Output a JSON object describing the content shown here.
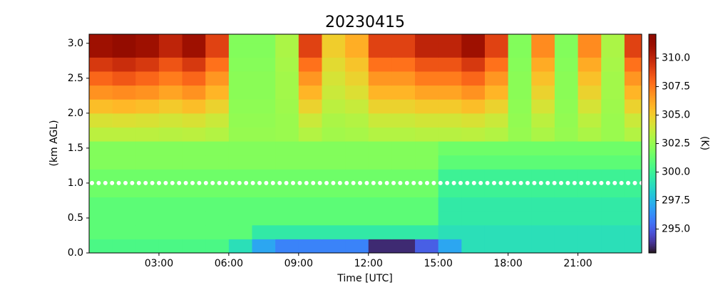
{
  "chart_data": {
    "type": "heatmap",
    "title": "20230415",
    "x_label": "Time [UTC]",
    "y_label": "(km AGL)",
    "colorbar_label": "(K)",
    "colormap": "turbo",
    "xlim": [
      0,
      23.74
    ],
    "ylim": [
      0,
      3.13
    ],
    "clim": [
      292.9,
      312.1
    ],
    "xticks": [
      {
        "value": 3,
        "label": "03:00"
      },
      {
        "value": 6,
        "label": "06:00"
      },
      {
        "value": 9,
        "label": "09:00"
      },
      {
        "value": 12,
        "label": "12:00"
      },
      {
        "value": 15,
        "label": "15:00"
      },
      {
        "value": 18,
        "label": "18:00"
      },
      {
        "value": 21,
        "label": "21:00"
      }
    ],
    "yticks": [
      {
        "value": 0,
        "label": "0.0"
      },
      0.5,
      {
        "value": 1,
        "label": "1.0"
      },
      1.5,
      {
        "value": 2,
        "label": "2.0"
      },
      2.5,
      {
        "value": 3,
        "label": "3.0"
      }
    ],
    "cticks": [
      {
        "value": 295,
        "label": "295.0"
      },
      297.5,
      {
        "value": 300,
        "label": "300.0"
      },
      302.5,
      {
        "value": 305,
        "label": "305.0"
      },
      307.5,
      {
        "value": 310,
        "label": "310.0"
      }
    ],
    "hline": 1.0,
    "x_edges": [
      0,
      1,
      2,
      3,
      4,
      5,
      6,
      7,
      8,
      9,
      10,
      11,
      12,
      13,
      14,
      15,
      16,
      17,
      18,
      19,
      20,
      21,
      22,
      23,
      23.74
    ],
    "y_edges": [
      0,
      0.2,
      0.4,
      0.6,
      0.8,
      1.0,
      1.2,
      1.4,
      1.6,
      1.8,
      2.0,
      2.2,
      2.4,
      2.6,
      2.8,
      3.0,
      3.2
    ],
    "values": [
      [
        300.5,
        300.5,
        300.5,
        300.5,
        300.5,
        300.5,
        299,
        297,
        296,
        296,
        296,
        296,
        293.5,
        293.5,
        295,
        297,
        299,
        299,
        299,
        299,
        299,
        299,
        299,
        299
      ],
      [
        301,
        301,
        301,
        301,
        301,
        301,
        301,
        299.5,
        299.5,
        299.5,
        299.5,
        299.5,
        299.5,
        299.5,
        299.5,
        299,
        299,
        299,
        299,
        299,
        299,
        299,
        299,
        299
      ],
      [
        301,
        301,
        301,
        301,
        301,
        301,
        301,
        301,
        301,
        301,
        301,
        301,
        301,
        301,
        301,
        299.5,
        299.5,
        299.5,
        299.5,
        299.5,
        299.5,
        299.5,
        299.5,
        299.5
      ],
      [
        301,
        301,
        301,
        301,
        301,
        301,
        301,
        301,
        301,
        301,
        301,
        301,
        301,
        301,
        301,
        299.5,
        299.5,
        299.5,
        299.5,
        299.5,
        299.5,
        299.5,
        299.5,
        299.5
      ],
      [
        301.5,
        301.5,
        301.5,
        301.5,
        301.5,
        301.5,
        301.5,
        301.5,
        301.5,
        301.5,
        301.5,
        301.5,
        301.5,
        301.5,
        301.5,
        300,
        300,
        300,
        300,
        300,
        300,
        300,
        300,
        300
      ],
      [
        301.5,
        301.5,
        301.5,
        301.5,
        301.5,
        301.5,
        301.5,
        301.5,
        301.5,
        301.5,
        301.5,
        301.5,
        301.5,
        301.5,
        301.5,
        300,
        300,
        300,
        300,
        300,
        300,
        300,
        300,
        300
      ],
      [
        302,
        302,
        302,
        302,
        302,
        302,
        302,
        302,
        302,
        302,
        302,
        302,
        302,
        302,
        302,
        301,
        301,
        301,
        301,
        301,
        301,
        301,
        301,
        301
      ],
      [
        302,
        302,
        302,
        302,
        302,
        302,
        302,
        302,
        302,
        302,
        302,
        302,
        302,
        302,
        302,
        301.5,
        301.5,
        301.5,
        301.5,
        301.5,
        301.5,
        301.5,
        301.5,
        301.5
      ],
      [
        303.4,
        303.4,
        303.4,
        303.3,
        303.4,
        303.2,
        302.5,
        302.5,
        302.6,
        303.2,
        302.8,
        302.9,
        303.2,
        303.2,
        303.3,
        303.3,
        303.4,
        303.2,
        302.5,
        303,
        302.5,
        303,
        302.6,
        303.2
      ],
      [
        304.2,
        304.3,
        304.2,
        304,
        304.2,
        303.8,
        302.4,
        302.4,
        302.6,
        303.8,
        303,
        303.2,
        303.8,
        303.8,
        304,
        304,
        304.2,
        303.8,
        302.4,
        303.4,
        302.4,
        303.4,
        302.6,
        303.8
      ],
      [
        305.5,
        305.7,
        305.5,
        305.1,
        305.5,
        304.8,
        302.3,
        302.3,
        302.7,
        304.8,
        303.4,
        303.7,
        304.8,
        304.8,
        305.1,
        305.1,
        305.5,
        304.8,
        302.3,
        304.1,
        302.3,
        304.1,
        302.7,
        304.8
      ],
      [
        306.8,
        307,
        306.8,
        306.3,
        306.8,
        305.8,
        302.2,
        302.2,
        302.8,
        305.8,
        303.8,
        304.3,
        305.8,
        305.8,
        306.3,
        306.3,
        306.8,
        305.8,
        302.2,
        304.8,
        302.2,
        304.8,
        302.8,
        305.8
      ],
      [
        308,
        308.4,
        308,
        307.4,
        308,
        306.7,
        302.2,
        302.2,
        302.8,
        306.7,
        304.1,
        304.8,
        306.7,
        306.7,
        307.4,
        307.4,
        308,
        306.7,
        302.2,
        305.4,
        302.2,
        305.4,
        302.8,
        306.7
      ],
      [
        309.3,
        309.7,
        309.3,
        308.5,
        309.3,
        307.7,
        302.1,
        302.1,
        302.9,
        307.7,
        304.5,
        305.3,
        307.7,
        307.7,
        308.5,
        308.5,
        309.3,
        307.7,
        302.1,
        306.1,
        302.1,
        306.1,
        302.9,
        307.7
      ],
      [
        311,
        311.5,
        311,
        310,
        311,
        309,
        302,
        302,
        303,
        309,
        305,
        306,
        309,
        309,
        310,
        310,
        311,
        309,
        302,
        307,
        302,
        307,
        303,
        309
      ],
      [
        311,
        311.5,
        311,
        310,
        311,
        309,
        302,
        302,
        303,
        309,
        305,
        306,
        309,
        309,
        310,
        310,
        311,
        309,
        302,
        307,
        302,
        307,
        303,
        309
      ]
    ]
  }
}
